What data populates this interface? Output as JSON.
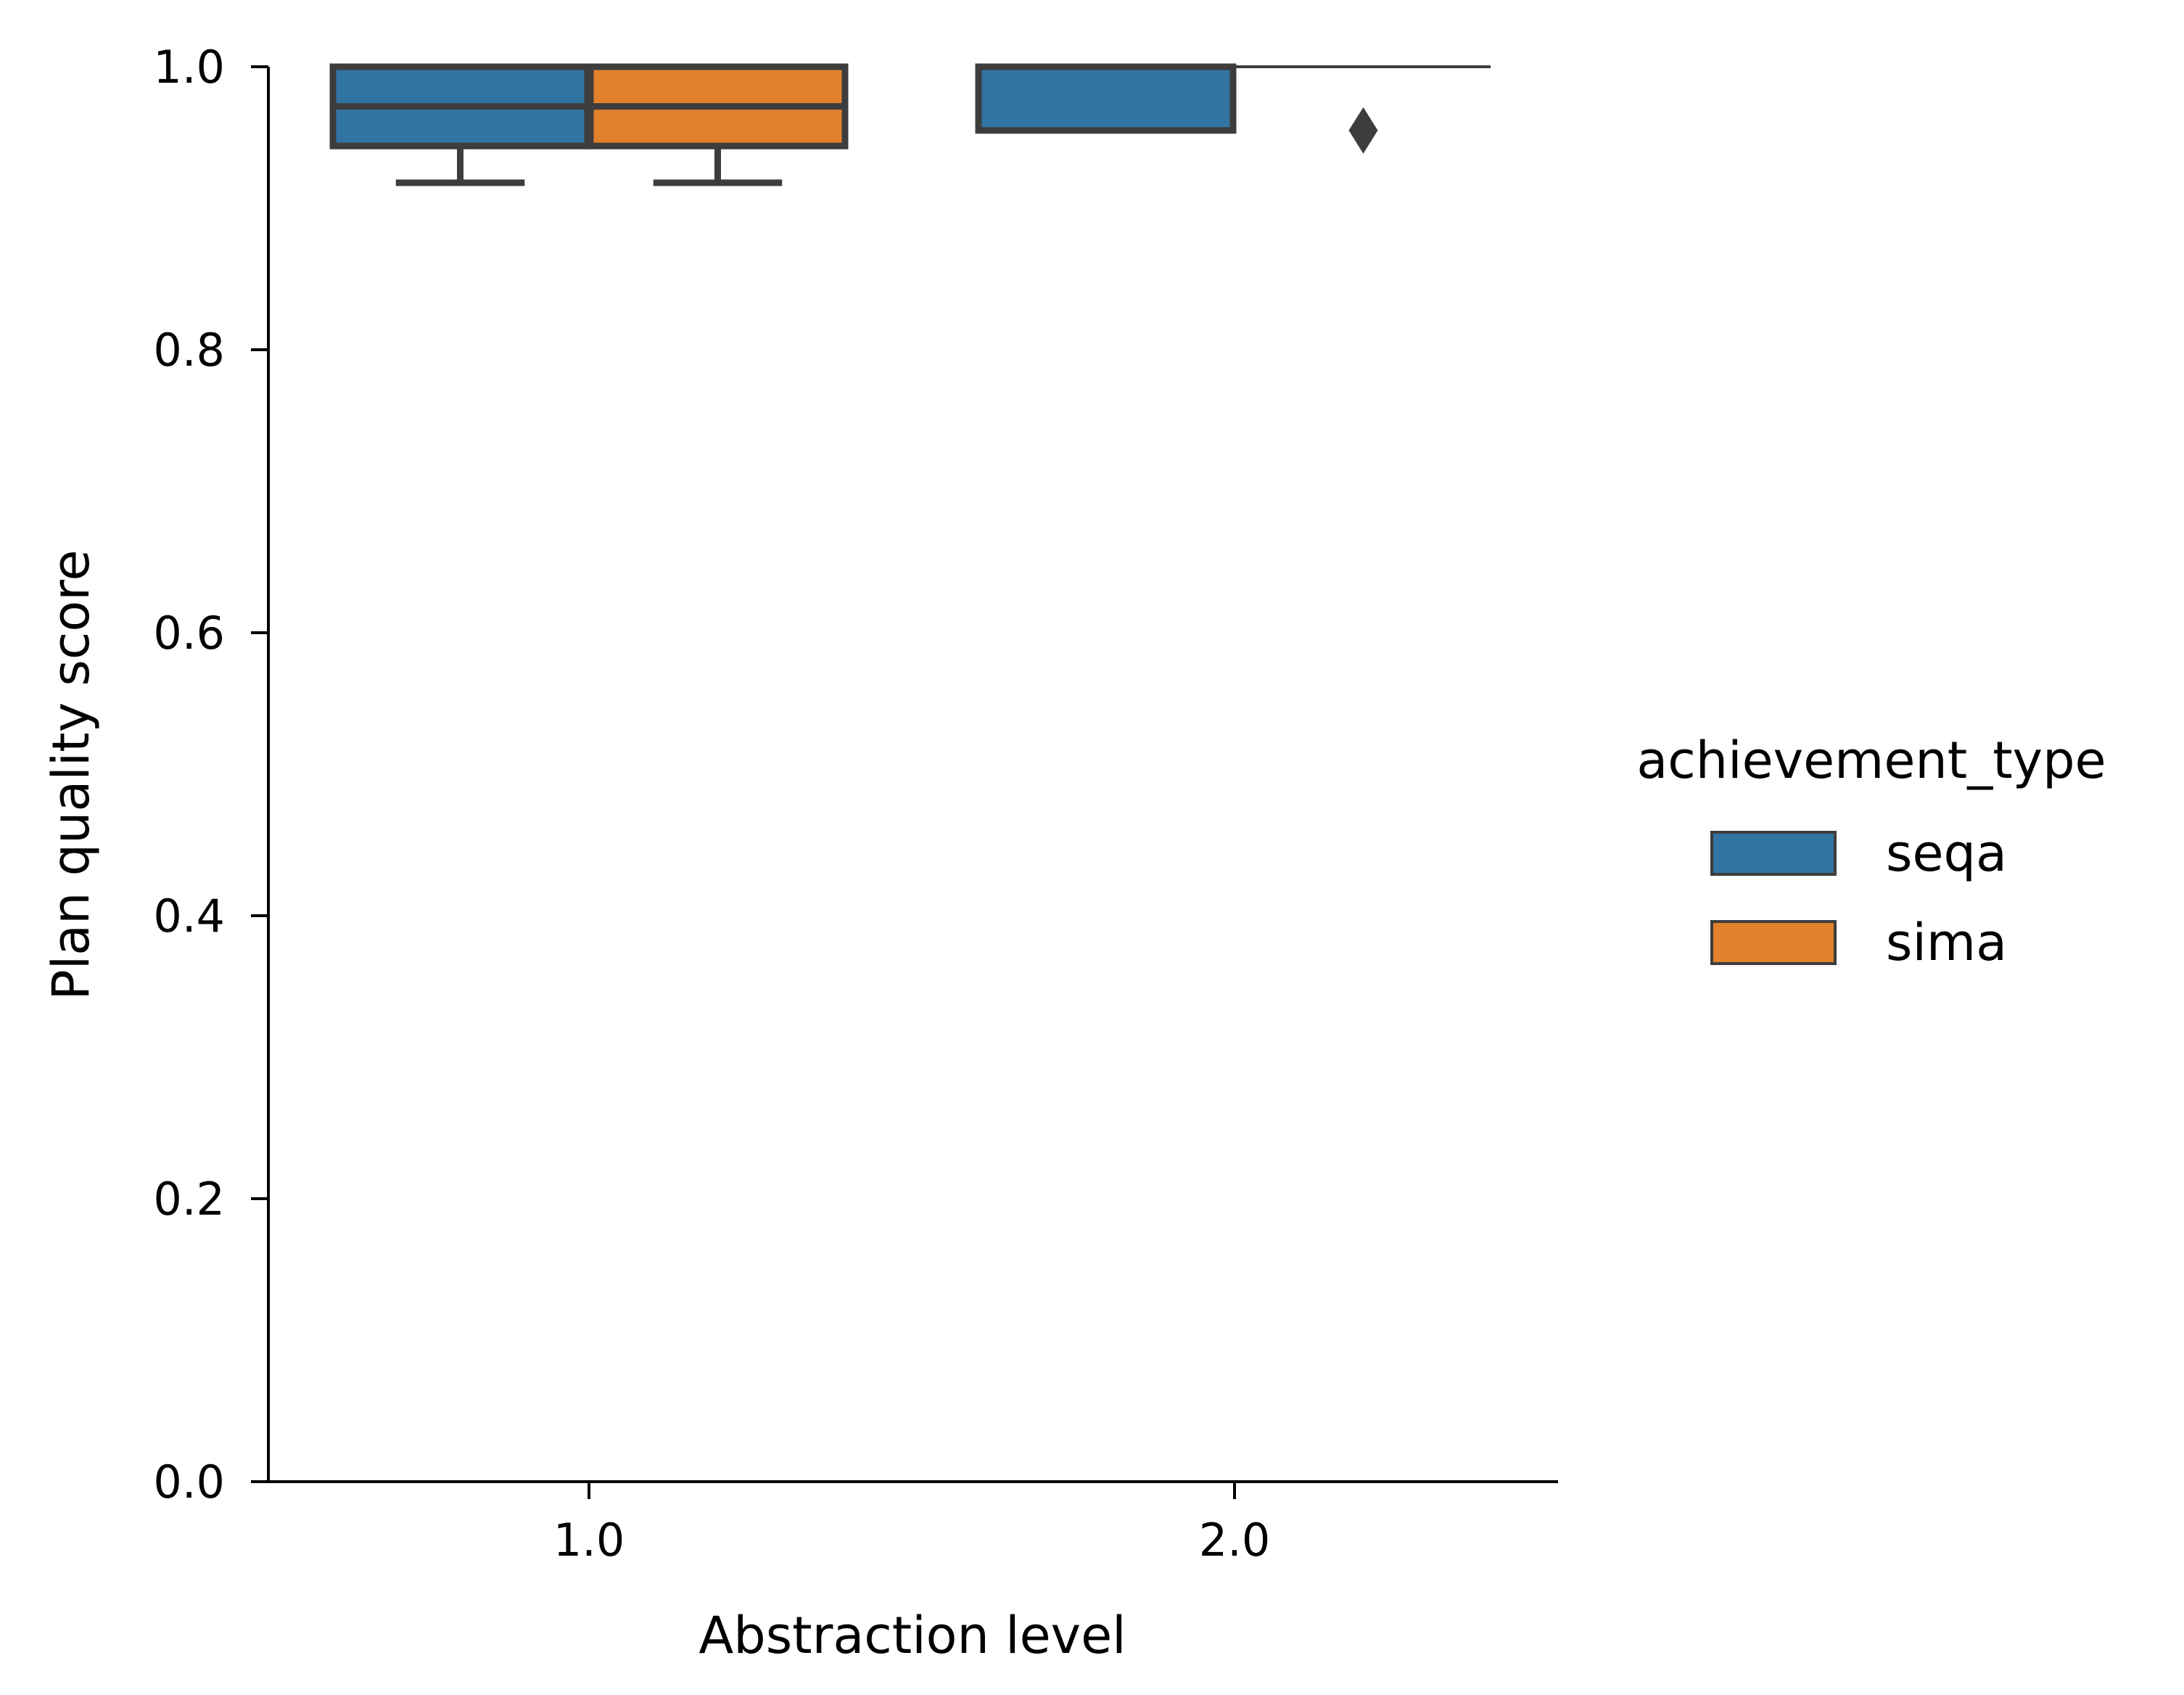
{
  "chart_data": {
    "type": "box",
    "xlabel": "Abstraction level",
    "ylabel": "Plan quality score",
    "categories": [
      "1.0",
      "2.0"
    ],
    "ylim": [
      0.0,
      1.0
    ],
    "yticks": [
      "0.0",
      "0.2",
      "0.4",
      "0.6",
      "0.8",
      "1.0"
    ],
    "grid": false,
    "legend": {
      "title": "achievement_type",
      "placement": "right",
      "entries": [
        {
          "name": "seqa",
          "color": "#3274a1"
        },
        {
          "name": "sima",
          "color": "#e1812c"
        }
      ]
    },
    "series": [
      {
        "name": "seqa",
        "color": "#3274a1",
        "boxes": [
          {
            "category": "1.0",
            "whisker_low": 0.918,
            "q1": 0.944,
            "median": 0.972,
            "q3": 1.0,
            "whisker_high": 1.0,
            "outliers": []
          },
          {
            "category": "2.0",
            "whisker_low": 0.955,
            "q1": 0.955,
            "median": 0.955,
            "q3": 1.0,
            "whisker_high": 1.0,
            "outliers": []
          }
        ]
      },
      {
        "name": "sima",
        "color": "#e1812c",
        "boxes": [
          {
            "category": "1.0",
            "whisker_low": 0.918,
            "q1": 0.944,
            "median": 0.972,
            "q3": 1.0,
            "whisker_high": 1.0,
            "outliers": []
          },
          {
            "category": "2.0",
            "whisker_low": 1.0,
            "q1": 1.0,
            "median": 1.0,
            "q3": 1.0,
            "whisker_high": 1.0,
            "outliers": [
              0.955
            ]
          }
        ]
      }
    ]
  },
  "colors": {
    "box_edge": "#3d3d3d",
    "axis": "#000000"
  }
}
